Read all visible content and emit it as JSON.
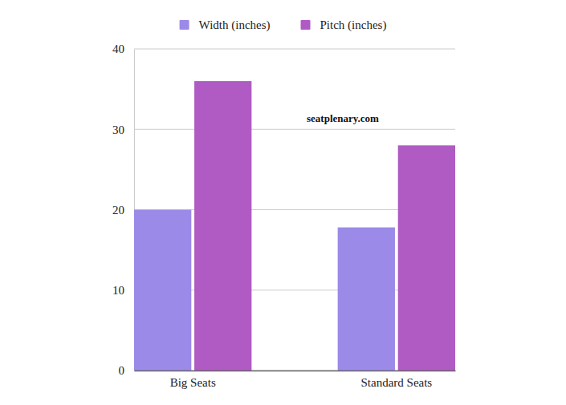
{
  "chart_data": {
    "type": "bar",
    "categories": [
      "Big Seats",
      "Standard Seats"
    ],
    "series": [
      {
        "name": "Width (inches)",
        "color": "#9b8ae8",
        "values": [
          20,
          17.8
        ]
      },
      {
        "name": "Pitch (inches)",
        "color": "#b05ac4",
        "values": [
          36,
          28
        ]
      }
    ],
    "ylim": [
      0,
      40
    ],
    "yticks": [
      0,
      10,
      20,
      30,
      40
    ],
    "grid": true,
    "legend": "top",
    "annotation": "seatplenary.com"
  }
}
